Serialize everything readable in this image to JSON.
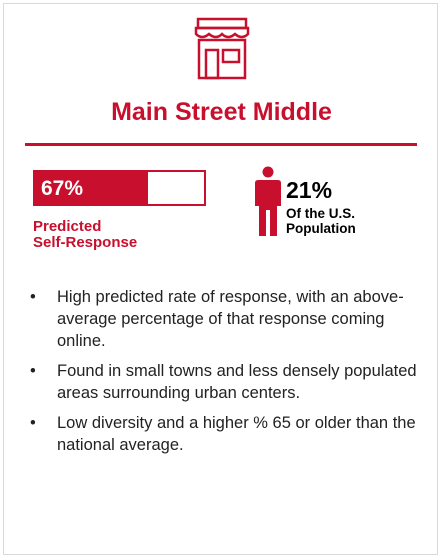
{
  "header": {
    "title": "Main Street Middle"
  },
  "stats": {
    "self_response": {
      "value": 67,
      "label": "67%",
      "caption": [
        "Predicted",
        "Self-Response"
      ]
    },
    "population": {
      "label": "21%",
      "caption": [
        "Of the U.S.",
        "Population"
      ]
    }
  },
  "bullets": [
    "High predicted rate of response, with an above-average percentage of that response coming online.",
    "Found in small towns and less densely populated areas surrounding urban centers.",
    "Low diversity and a higher % 65 or older than the national average."
  ]
}
